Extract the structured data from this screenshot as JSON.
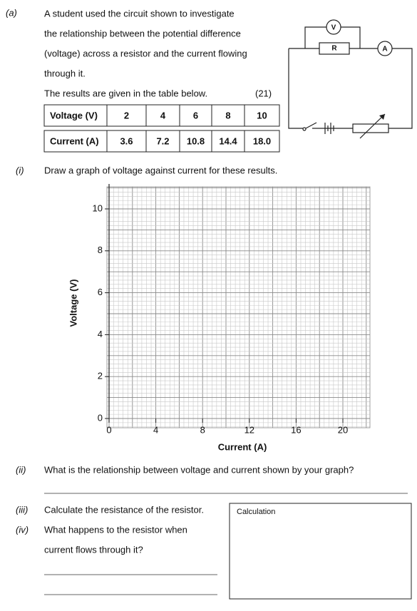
{
  "part_label": "(a)",
  "intro": {
    "lines": [
      "A student used the circuit shown to investigate",
      "the relationship between the potential difference",
      "(voltage) across a resistor and the current flowing",
      "through it."
    ]
  },
  "results_intro": "The results are given in the table below.",
  "marks": "(21)",
  "table": {
    "rows": [
      [
        "Voltage (V)",
        "2",
        "4",
        "6",
        "8",
        "10"
      ],
      [
        "Current (A)",
        "3.6",
        "7.2",
        "10.8",
        "14.4",
        "18.0"
      ]
    ]
  },
  "circuit": {
    "voltmeter": "V",
    "resistor": "R",
    "ammeter": "A"
  },
  "questions": [
    {
      "number": "(i)",
      "lines": [
        "Draw a graph of voltage against current for these results."
      ]
    },
    {
      "number": "(ii)",
      "lines": [
        "What is the relationship between voltage and current shown by your graph?"
      ]
    },
    {
      "number": "(iii)",
      "lines": [
        "Calculate the resistance of the resistor."
      ]
    },
    {
      "number": "(iv)",
      "lines": [
        "What happens to the resistor when",
        "current flows through it?"
      ]
    }
  ],
  "graph": {
    "ylabel": "Voltage (V)",
    "xlabel": "Current (A)",
    "xticks": [
      0,
      4,
      8,
      12,
      16,
      20
    ],
    "yticks": [
      0,
      2,
      4,
      6,
      8,
      10
    ]
  },
  "calculation_box": {
    "label": "Calculation"
  }
}
